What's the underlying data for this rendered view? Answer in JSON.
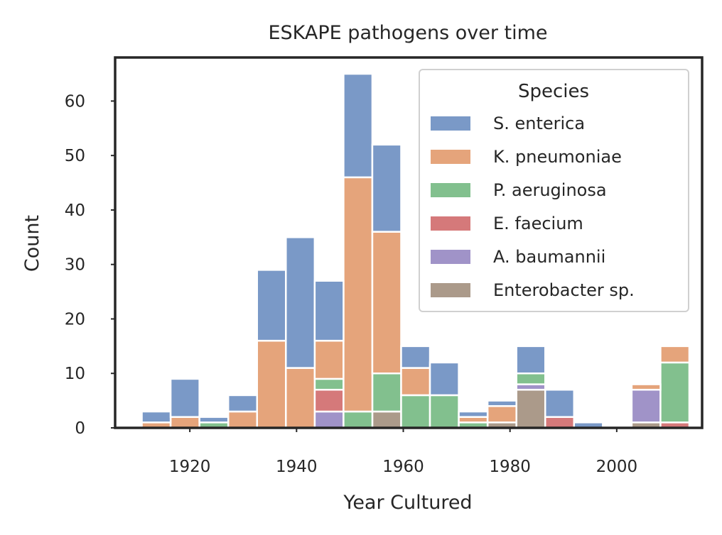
{
  "chart_data": {
    "type": "bar",
    "stacked": true,
    "title": "ESKAPE pathogens over time",
    "xlabel": "Year Cultured",
    "ylabel": "Count",
    "xlim": [
      1906,
      2016
    ],
    "ylim": [
      0,
      68
    ],
    "xticks": [
      1920,
      1940,
      1960,
      1980,
      2000
    ],
    "yticks": [
      0,
      10,
      20,
      30,
      40,
      50,
      60
    ],
    "bin_width": 5.4,
    "grid": false,
    "legend": {
      "title": "Species",
      "placement": "top-right"
    },
    "bins": [
      1911,
      1916.4,
      1921.8,
      1927.2,
      1932.6,
      1938,
      1943.4,
      1948.8,
      1954.2,
      1959.6,
      1965,
      1970.4,
      1975.8,
      1981.2,
      1986.6,
      1992,
      1997.4,
      2002.8,
      2008.2
    ],
    "series": [
      {
        "name": "Enterobacter sp.",
        "color": "#ab9a8a",
        "values": [
          0,
          0,
          0,
          0,
          0,
          0,
          0,
          0,
          3,
          0,
          0,
          0,
          1,
          7,
          0,
          0,
          0,
          1,
          0
        ]
      },
      {
        "name": "A. baumannii",
        "color": "#a093c8",
        "values": [
          0,
          0,
          0,
          0,
          0,
          0,
          3,
          0,
          0,
          0,
          0,
          0,
          0,
          1,
          0,
          0,
          0,
          6,
          0
        ]
      },
      {
        "name": "E. faecium",
        "color": "#d5797a",
        "values": [
          0,
          0,
          0,
          0,
          0,
          0,
          4,
          0,
          0,
          0,
          0,
          0,
          0,
          0,
          2,
          0,
          0,
          0,
          1
        ]
      },
      {
        "name": "P. aeruginosa",
        "color": "#82c08e",
        "values": [
          0,
          0,
          1,
          0,
          0,
          0,
          2,
          3,
          7,
          6,
          6,
          1,
          0,
          2,
          0,
          0,
          0,
          0,
          11
        ]
      },
      {
        "name": "K. pneumoniae",
        "color": "#e5a47b",
        "values": [
          1,
          2,
          0,
          3,
          16,
          11,
          7,
          43,
          26,
          5,
          0,
          1,
          3,
          0,
          0,
          0,
          0,
          1,
          3
        ]
      },
      {
        "name": "S. enterica",
        "color": "#7a99c7",
        "values": [
          2,
          7,
          1,
          3,
          13,
          24,
          11,
          19,
          16,
          4,
          6,
          1,
          1,
          5,
          5,
          1,
          0,
          0,
          0
        ]
      }
    ],
    "legend_order": [
      "S. enterica",
      "K. pneumoniae",
      "P. aeruginosa",
      "E. faecium",
      "A. baumannii",
      "Enterobacter sp."
    ]
  }
}
